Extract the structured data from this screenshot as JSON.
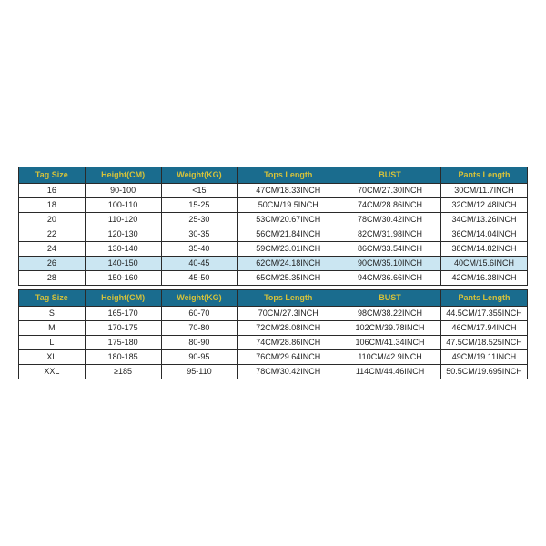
{
  "header_bg": "#1a6c8e",
  "header_fg": "#d6c23a",
  "row_highlight_bg": "#cbe6f2",
  "border_color": "#2a2a2a",
  "text_color": "#222222",
  "background": "#ffffff",
  "col_widths_pct": [
    13,
    15,
    15,
    20,
    20,
    17
  ],
  "table1": {
    "columns": [
      "Tag Size",
      "Height(CM)",
      "Weight(KG)",
      "Tops Length",
      "BUST",
      "Pants Length"
    ],
    "rows": [
      [
        "16",
        "90-100",
        "<15",
        "47CM/18.33INCH",
        "70CM/27.30INCH",
        "30CM/11.7INCH"
      ],
      [
        "18",
        "100-110",
        "15-25",
        "50CM/19.5INCH",
        "74CM/28.86INCH",
        "32CM/12.48INCH"
      ],
      [
        "20",
        "110-120",
        "25-30",
        "53CM/20.67INCH",
        "78CM/30.42INCH",
        "34CM/13.26INCH"
      ],
      [
        "22",
        "120-130",
        "30-35",
        "56CM/21.84INCH",
        "82CM/31.98INCH",
        "36CM/14.04INCH"
      ],
      [
        "24",
        "130-140",
        "35-40",
        "59CM/23.01INCH",
        "86CM/33.54INCH",
        "38CM/14.82INCH"
      ],
      [
        "26",
        "140-150",
        "40-45",
        "62CM/24.18INCH",
        "90CM/35.10INCH",
        "40CM/15.6INCH"
      ],
      [
        "28",
        "150-160",
        "45-50",
        "65CM/25.35INCH",
        "94CM/36.66INCH",
        "42CM/16.38INCH"
      ]
    ],
    "highlighted_row_index": 5
  },
  "table2": {
    "columns": [
      "Tag Size",
      "Height(CM)",
      "Weight(KG)",
      "Tops Length",
      "BUST",
      "Pants Length"
    ],
    "rows": [
      [
        "S",
        "165-170",
        "60-70",
        "70CM/27.3INCH",
        "98CM/38.22INCH",
        "44.5CM/17.355INCH"
      ],
      [
        "M",
        "170-175",
        "70-80",
        "72CM/28.08INCH",
        "102CM/39.78INCH",
        "46CM/17.94INCH"
      ],
      [
        "L",
        "175-180",
        "80-90",
        "74CM/28.86INCH",
        "106CM/41.34INCH",
        "47.5CM/18.525INCH"
      ],
      [
        "XL",
        "180-185",
        "90-95",
        "76CM/29.64INCH",
        "110CM/42.9INCH",
        "49CM/19.11INCH"
      ],
      [
        "XXL",
        "≥185",
        "95-110",
        "78CM/30.42INCH",
        "114CM/44.46INCH",
        "50.5CM/19.695INCH"
      ]
    ],
    "highlighted_row_index": -1
  }
}
